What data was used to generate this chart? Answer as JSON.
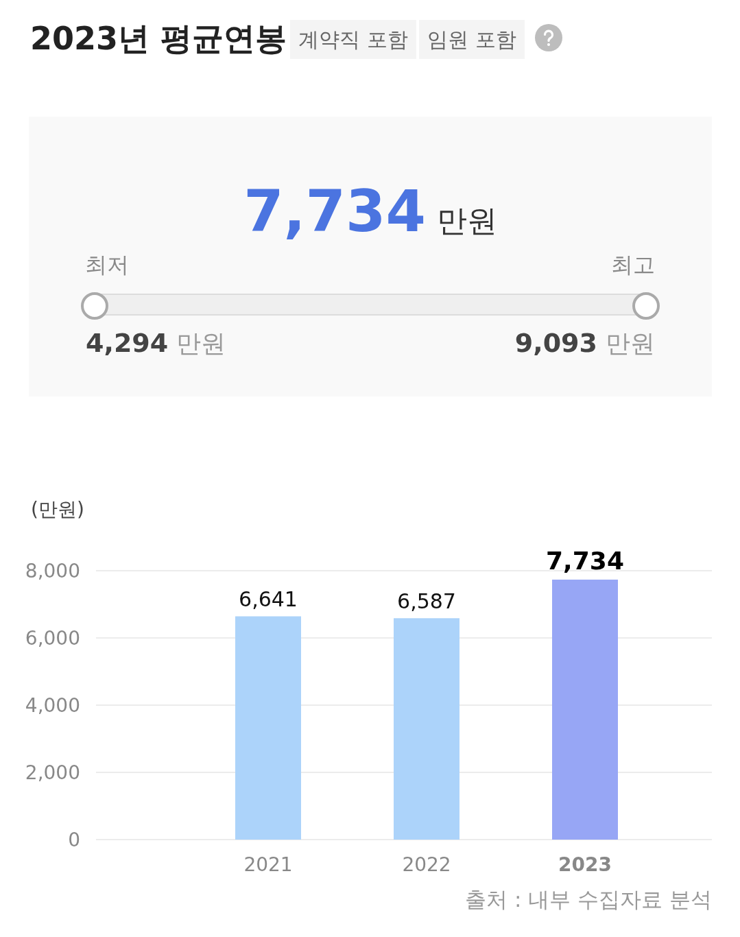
{
  "chart_data": [
    {
      "type": "other",
      "title": "2023년 평균연봉",
      "annotations": [
        "계약직 포함",
        "임원 포함",
        "7,734",
        "만원",
        "최저",
        "최고",
        "4,294",
        "만원",
        "9,093",
        "만원"
      ]
    },
    {
      "type": "bar",
      "ylabel": "(만원)",
      "categories": [
        "2021",
        "2022",
        "2023"
      ],
      "values": [
        6641,
        6587,
        7734
      ],
      "value_labels": [
        "6,641",
        "6,587",
        "7,734"
      ],
      "colors": [
        "#acd3fa",
        "#acd3fa",
        "#97a6f5"
      ],
      "ylim": [
        0,
        8000
      ],
      "yticks": [
        {
          "value": 0,
          "label": "0"
        },
        {
          "value": 2000,
          "label": "2,000"
        },
        {
          "value": 4000,
          "label": "4,000"
        },
        {
          "value": 6000,
          "label": "6,000"
        },
        {
          "value": 8000,
          "label": "8,000"
        }
      ],
      "grid": "y",
      "annotations": [
        "출처 : 내부 수집자료 분석"
      ]
    }
  ]
}
